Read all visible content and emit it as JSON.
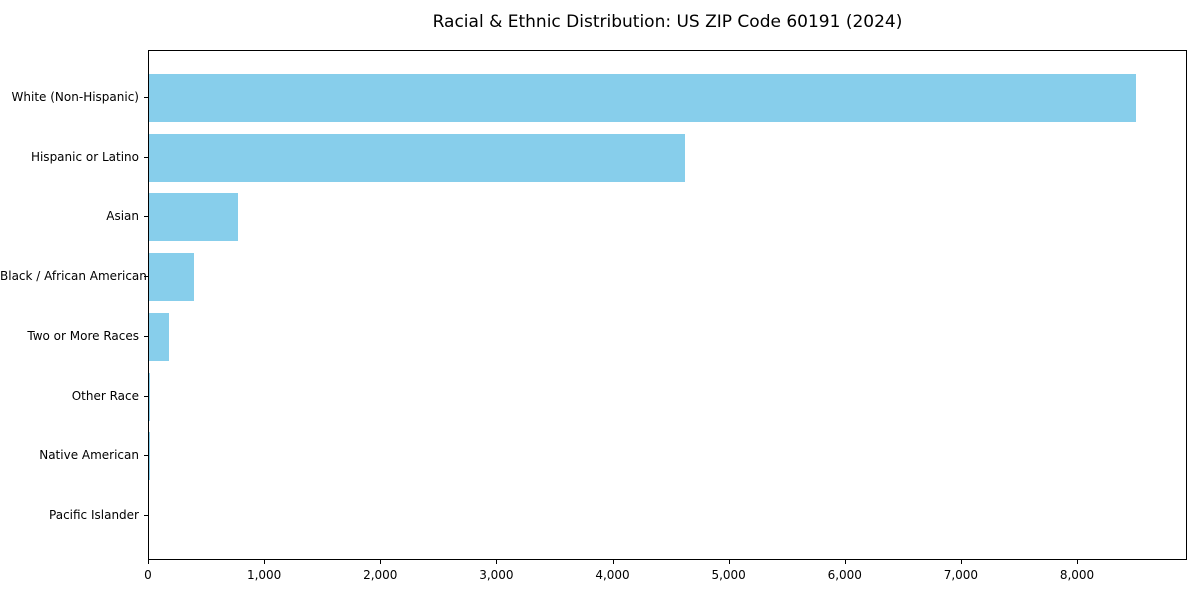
{
  "chart_data": {
    "type": "bar",
    "orientation": "horizontal",
    "title": "Racial & Ethnic Distribution: US ZIP Code 60191 (2024)",
    "categories": [
      "White (Non-Hispanic)",
      "Hispanic or Latino",
      "Asian",
      "Black / African American",
      "Two or More Races",
      "Other Race",
      "Native American",
      "Pacific Islander"
    ],
    "values": [
      8500,
      4614,
      764,
      385,
      170,
      12,
      3,
      0
    ],
    "xlabel": "",
    "ylabel": "",
    "xlim": [
      0,
      8947
    ],
    "xticks": [
      0,
      1000,
      2000,
      3000,
      4000,
      5000,
      6000,
      7000,
      8000
    ],
    "xtick_labels": [
      "0",
      "1,000",
      "2,000",
      "3,000",
      "4,000",
      "5,000",
      "6,000",
      "7,000",
      "8,000"
    ],
    "bar_color": "#87CEEB",
    "axis_color": "#000000",
    "background_color": "#ffffff",
    "grid": false,
    "legend": "none"
  }
}
